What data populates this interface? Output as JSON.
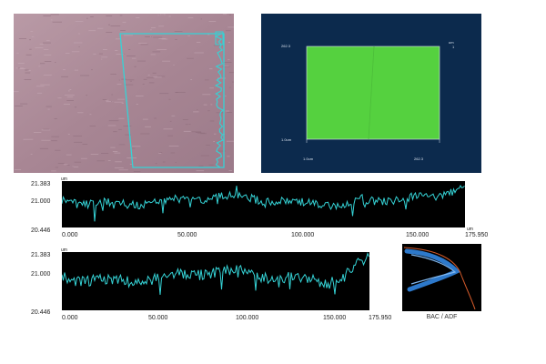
{
  "micrograph": {
    "image": "surface-micrograph"
  },
  "colormap": {
    "y_top": "262.3",
    "y_bottom": "1.0um",
    "x_left": "1.0um",
    "x_right": "262.3",
    "corner_unit": "um",
    "corner_value": "1"
  },
  "profile1": {
    "unit": "um",
    "y_ticks": [
      "21.383",
      "21.000",
      "20.446"
    ],
    "x_ticks": [
      "0.000",
      "50.000",
      "100.000",
      "150.000",
      "175.950"
    ],
    "x_unit": "um"
  },
  "profile2": {
    "unit": "um",
    "y_ticks": [
      "21.383",
      "21.000",
      "20.446"
    ],
    "x_ticks": [
      "0.000",
      "50.000",
      "100.000",
      "150.000",
      "175.950"
    ]
  },
  "bac_adf": {
    "caption": "BAC / ADF"
  },
  "colors": {
    "trace": "#35d3d6",
    "map_bg": "#0c2a4d",
    "map_fill": "#55d13f",
    "bac_blue": "#2f7fd6",
    "bac_red": "#d45a2a"
  }
}
